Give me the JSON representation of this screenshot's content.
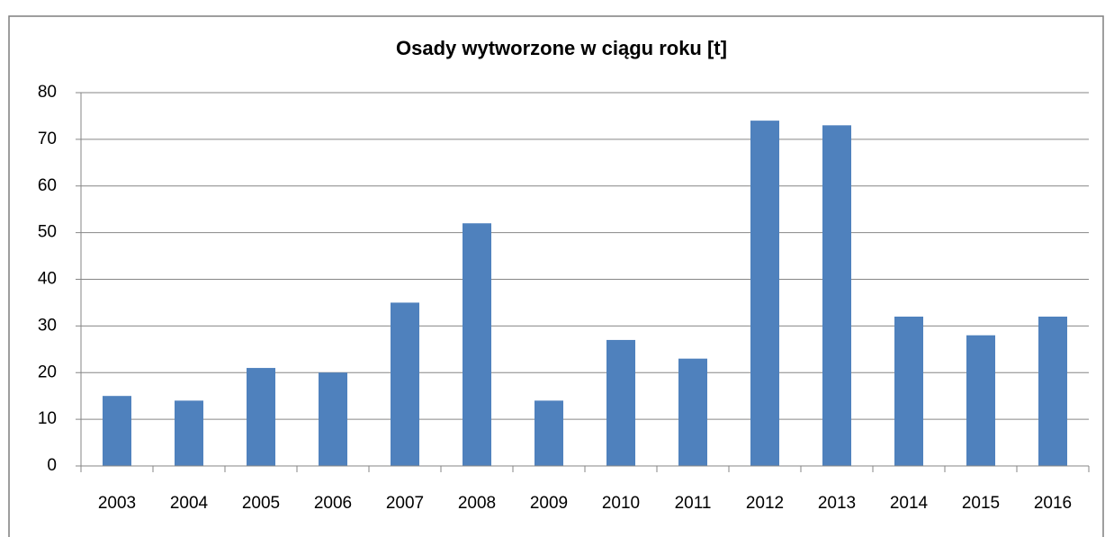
{
  "chart_data": {
    "type": "bar",
    "title": "Osady wytworzone w ciągu roku [t]",
    "categories": [
      "2003",
      "2004",
      "2005",
      "2006",
      "2007",
      "2008",
      "2009",
      "2010",
      "2011",
      "2012",
      "2013",
      "2014",
      "2015",
      "2016"
    ],
    "values": [
      15,
      14,
      21,
      20,
      35,
      52,
      14,
      27,
      23,
      74,
      73,
      32,
      28,
      32
    ],
    "color": "#4f81bd",
    "ylim": [
      0,
      80
    ],
    "yticks": [
      0,
      10,
      20,
      30,
      40,
      50,
      60,
      70,
      80
    ],
    "grid": true
  }
}
